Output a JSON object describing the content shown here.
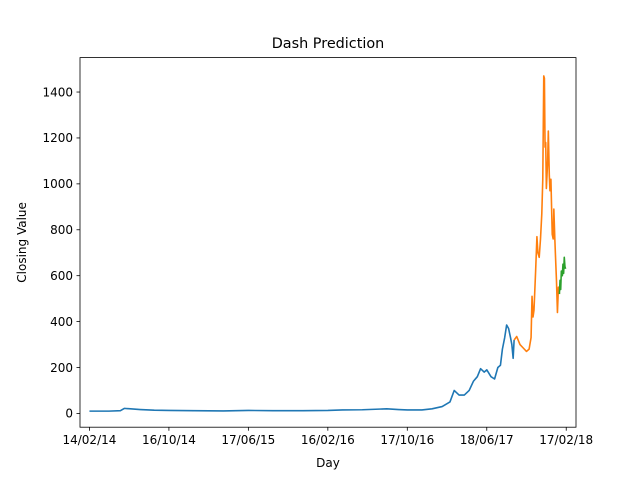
{
  "chart_data": {
    "type": "line",
    "title": "Dash Prediction",
    "xlabel": "Day",
    "ylabel": "Closing Value",
    "x_ticks": [
      "14/02/14",
      "16/10/14",
      "17/06/15",
      "16/02/16",
      "17/10/16",
      "18/06/17",
      "17/02/18"
    ],
    "y_ticks": [
      0,
      200,
      400,
      600,
      800,
      1000,
      1200,
      1400
    ],
    "xlim": [
      "2014-01-16",
      "2018-03-19"
    ],
    "ylim": [
      -60,
      1550
    ],
    "grid": false,
    "legend": "none",
    "series": [
      {
        "color": "#1f77b4",
        "points": [
          [
            "2014-02-14",
            10
          ],
          [
            "2014-04-15",
            10
          ],
          [
            "2014-05-20",
            12
          ],
          [
            "2014-06-01",
            22
          ],
          [
            "2014-06-20",
            20
          ],
          [
            "2014-07-20",
            17
          ],
          [
            "2014-09-01",
            14
          ],
          [
            "2014-10-16",
            13
          ],
          [
            "2015-01-01",
            12
          ],
          [
            "2015-04-01",
            11
          ],
          [
            "2015-06-17",
            13
          ],
          [
            "2015-09-01",
            12
          ],
          [
            "2015-12-01",
            12
          ],
          [
            "2016-02-16",
            13
          ],
          [
            "2016-04-01",
            15
          ],
          [
            "2016-06-01",
            16
          ],
          [
            "2016-08-15",
            20
          ],
          [
            "2016-09-20",
            17
          ],
          [
            "2016-10-17",
            15
          ],
          [
            "2016-12-01",
            15
          ],
          [
            "2017-01-01",
            20
          ],
          [
            "2017-02-01",
            30
          ],
          [
            "2017-02-25",
            50
          ],
          [
            "2017-03-10",
            100
          ],
          [
            "2017-03-25",
            80
          ],
          [
            "2017-04-10",
            80
          ],
          [
            "2017-04-25",
            100
          ],
          [
            "2017-05-08",
            140
          ],
          [
            "2017-05-20",
            160
          ],
          [
            "2017-05-30",
            195
          ],
          [
            "2017-06-10",
            180
          ],
          [
            "2017-06-18",
            190
          ],
          [
            "2017-07-01",
            160
          ],
          [
            "2017-07-12",
            150
          ],
          [
            "2017-07-22",
            200
          ],
          [
            "2017-07-30",
            210
          ],
          [
            "2017-08-05",
            280
          ],
          [
            "2017-08-12",
            330
          ],
          [
            "2017-08-18",
            385
          ],
          [
            "2017-08-24",
            370
          ],
          [
            "2017-08-30",
            330
          ],
          [
            "2017-09-03",
            300
          ],
          [
            "2017-09-07",
            240
          ],
          [
            "2017-09-10",
            320
          ]
        ]
      },
      {
        "color": "#ff7f0e",
        "points": [
          [
            "2017-09-10",
            320
          ],
          [
            "2017-09-18",
            335
          ],
          [
            "2017-09-28",
            300
          ],
          [
            "2017-10-08",
            285
          ],
          [
            "2017-10-18",
            270
          ],
          [
            "2017-10-26",
            280
          ],
          [
            "2017-11-01",
            330
          ],
          [
            "2017-11-04",
            510
          ],
          [
            "2017-11-07",
            420
          ],
          [
            "2017-11-10",
            450
          ],
          [
            "2017-11-15",
            620
          ],
          [
            "2017-11-19",
            770
          ],
          [
            "2017-11-22",
            700
          ],
          [
            "2017-11-26",
            680
          ],
          [
            "2017-11-30",
            760
          ],
          [
            "2017-12-04",
            870
          ],
          [
            "2017-12-07",
            1020
          ],
          [
            "2017-12-10",
            1470
          ],
          [
            "2017-12-12",
            1460
          ],
          [
            "2017-12-14",
            1160
          ],
          [
            "2017-12-16",
            1180
          ],
          [
            "2017-12-18",
            980
          ],
          [
            "2017-12-20",
            1040
          ],
          [
            "2017-12-22",
            1100
          ],
          [
            "2017-12-24",
            1230
          ],
          [
            "2017-12-27",
            1040
          ],
          [
            "2017-12-29",
            970
          ],
          [
            "2018-01-01",
            1020
          ],
          [
            "2018-01-03",
            900
          ],
          [
            "2018-01-05",
            780
          ],
          [
            "2018-01-08",
            760
          ],
          [
            "2018-01-10",
            890
          ],
          [
            "2018-01-13",
            760
          ],
          [
            "2018-01-16",
            650
          ],
          [
            "2018-01-18",
            580
          ],
          [
            "2018-01-21",
            440
          ],
          [
            "2018-01-24",
            550
          ],
          [
            "2018-01-27",
            520
          ]
        ]
      },
      {
        "color": "#2ca02c",
        "points": [
          [
            "2018-01-27",
            520
          ],
          [
            "2018-01-29",
            580
          ],
          [
            "2018-01-31",
            540
          ],
          [
            "2018-02-02",
            620
          ],
          [
            "2018-02-05",
            600
          ],
          [
            "2018-02-07",
            650
          ],
          [
            "2018-02-09",
            610
          ],
          [
            "2018-02-11",
            680
          ],
          [
            "2018-02-13",
            640
          ],
          [
            "2018-02-15",
            630
          ]
        ]
      }
    ]
  }
}
